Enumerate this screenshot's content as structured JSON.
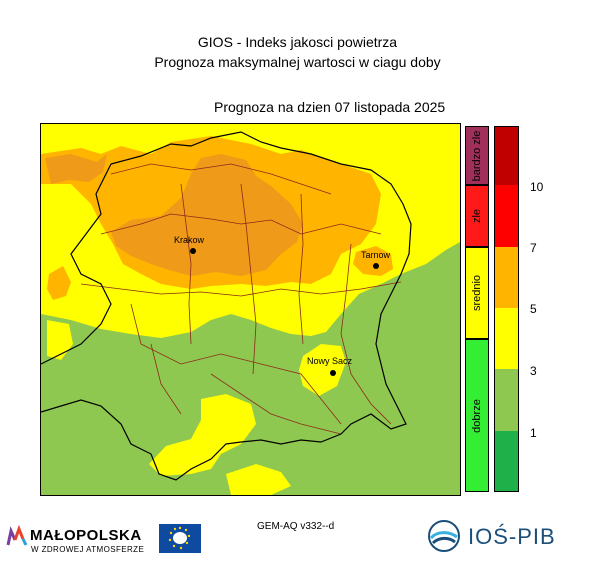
{
  "header": {
    "title": "GIOS - Indeks jakosci powietrza",
    "subtitle": "Prognoza maksymalnej wartosci w ciagu doby",
    "date_line": "Prognoza na dzien  07 listopada 2025"
  },
  "legend": {
    "categories": [
      {
        "label": "bardzo zle",
        "color": "#a0305a"
      },
      {
        "label": "zle",
        "color": "#ff1a1a"
      },
      {
        "label": "srednio",
        "color": "#ffff00"
      },
      {
        "label": "dobrze",
        "color": "#33ee33"
      }
    ],
    "levels": [
      {
        "color": "#c00000"
      },
      {
        "color": "#ff0000"
      },
      {
        "color": "#ffb400"
      },
      {
        "color": "#ffff00"
      },
      {
        "color": "#8fc850"
      },
      {
        "color": "#1fb04a"
      }
    ],
    "ticks": [
      "10",
      "7",
      "5",
      "3",
      "1"
    ]
  },
  "map": {
    "cities": [
      {
        "name": "Krakow"
      },
      {
        "name": "Tarnow"
      },
      {
        "name": "Nowy Sacz"
      }
    ],
    "colors": {
      "moderate": "#ffff00",
      "elevated": "#ffb400",
      "high": "#f09a1a",
      "good": "#8fc850"
    }
  },
  "footer": {
    "model": "GEM-AQ v332--d",
    "brand_left": "MAŁOPOLSKA",
    "brand_left_sub": "W ZDROWEJ ATMOSFERZE",
    "brand_right": "IOŚ-PIB"
  }
}
